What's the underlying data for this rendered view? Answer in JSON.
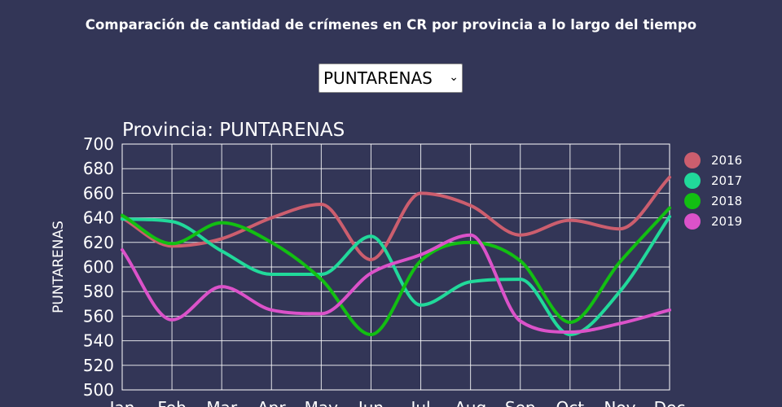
{
  "page": {
    "title": "Comparación de cantidad de crímenes en CR por provincia a lo largo del tiempo"
  },
  "province_select": {
    "value": "PUNTARENAS"
  },
  "chart_data": {
    "type": "line",
    "title": "Provincia: PUNTARENAS",
    "xlabel": "",
    "ylabel": "PUNTARENAS",
    "ylim": [
      500,
      700
    ],
    "yticks": [
      500,
      520,
      540,
      560,
      580,
      600,
      620,
      640,
      660,
      680,
      700
    ],
    "categories": [
      "Jan",
      "Feb",
      "Mar",
      "Apr",
      "May",
      "Jun",
      "Jul",
      "Aug",
      "Sep",
      "Oct",
      "Nov",
      "Dec"
    ],
    "grid": true,
    "smooth": true,
    "legend_position": "right",
    "series": [
      {
        "name": "2016",
        "color": "#cc5e6e",
        "values": [
          640,
          617,
          623,
          640,
          651,
          606,
          660,
          650,
          626,
          638,
          631,
          673
        ]
      },
      {
        "name": "2017",
        "color": "#21d99a",
        "values": [
          639,
          637,
          613,
          594,
          594,
          625,
          569,
          588,
          590,
          545,
          580,
          641
        ]
      },
      {
        "name": "2018",
        "color": "#12bf12",
        "values": [
          642,
          619,
          636,
          620,
          590,
          545,
          605,
          620,
          605,
          555,
          604,
          648
        ]
      },
      {
        "name": "2019",
        "color": "#db52c9",
        "values": [
          614,
          557,
          584,
          565,
          562,
          595,
          610,
          626,
          556,
          547,
          554,
          565
        ]
      }
    ]
  }
}
